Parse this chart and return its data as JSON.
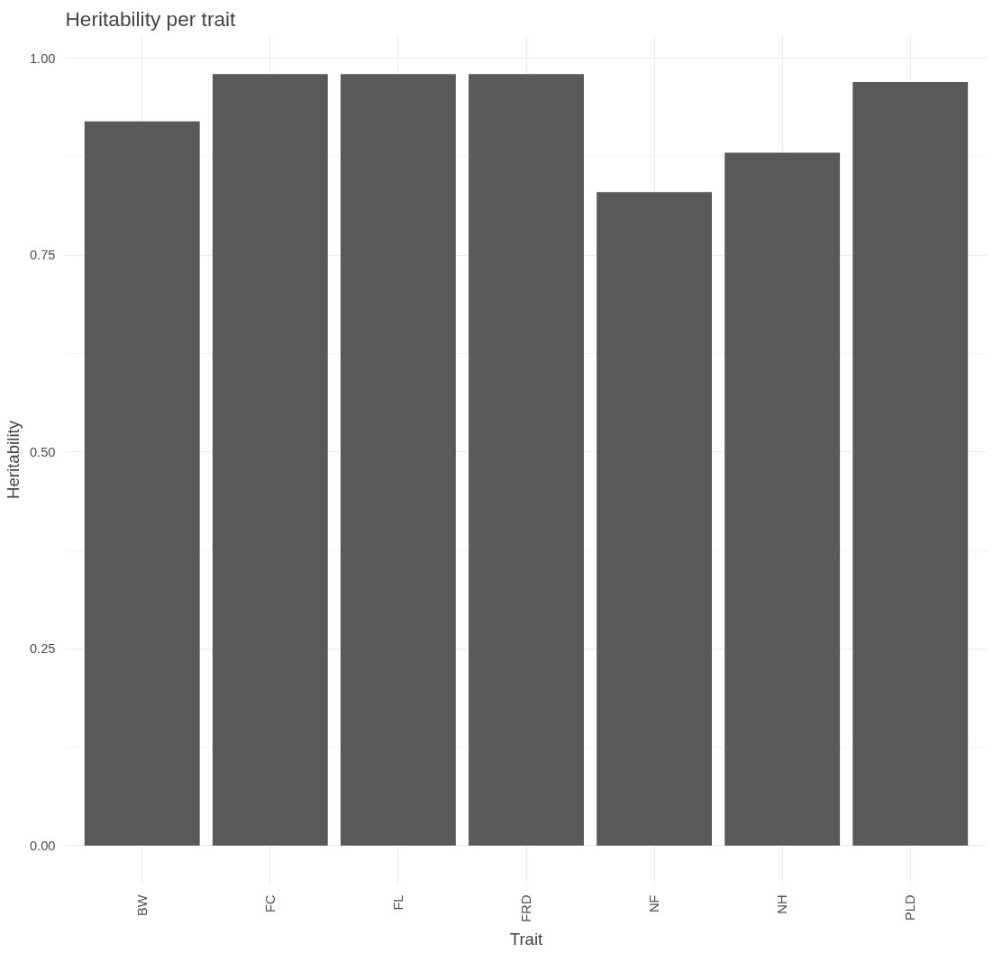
{
  "chart_data": {
    "type": "bar",
    "title": "Heritability per trait",
    "xlabel": "Trait",
    "ylabel": "Heritability",
    "categories": [
      "BW",
      "FC",
      "FL",
      "FRD",
      "NF",
      "NH",
      "PLD"
    ],
    "values": [
      0.92,
      0.98,
      0.98,
      0.98,
      0.83,
      0.88,
      0.97
    ],
    "color": "#595959",
    "ylim": [
      -0.05,
      1.03
    ],
    "yticks": [
      {
        "value": 0,
        "label": "0.00"
      },
      {
        "value": 0.25,
        "label": "0.25"
      },
      {
        "value": 0.5,
        "label": "0.50"
      },
      {
        "value": 0.75,
        "label": "0.75"
      },
      {
        "value": 1,
        "label": "1.00"
      }
    ],
    "grid": true
  }
}
